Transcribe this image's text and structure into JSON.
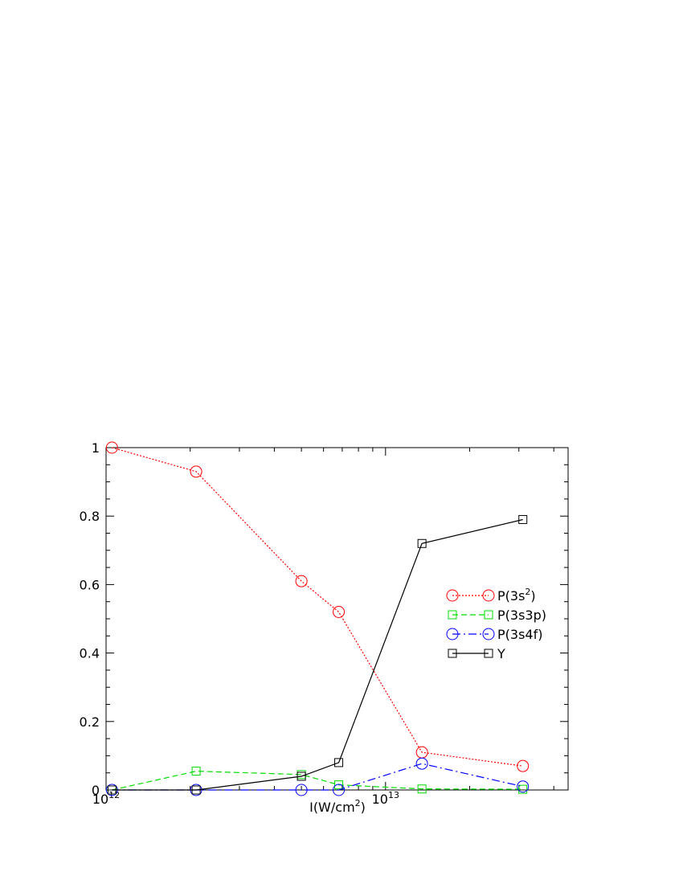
{
  "chart_data": {
    "type": "line",
    "xlabel": "I(W/cm",
    "xlabel_sup": "2",
    "xlabel_suffix": ")",
    "x_scale": "log",
    "xlim": [
      1000000000000.0,
      45000000000000.0
    ],
    "ylim": [
      0,
      1
    ],
    "y_ticks": [
      {
        "value": 0,
        "label": "0"
      },
      {
        "value": 0.2,
        "label": "0.2"
      },
      {
        "value": 0.4,
        "label": "0.4"
      },
      {
        "value": 0.6,
        "label": "0.6"
      },
      {
        "value": 0.8,
        "label": "0.8"
      },
      {
        "value": 1,
        "label": "1"
      }
    ],
    "x_ticks": [
      {
        "value": 1000000000000.0,
        "base": "10",
        "exp": "12"
      },
      {
        "value": 10000000000000.0,
        "base": "10",
        "exp": "13"
      }
    ],
    "grid": false,
    "legend_position": "right",
    "x": [
      1050000000000.0,
      2100000000000.0,
      5000000000000.0,
      6800000000000.0,
      13500000000000.0,
      31000000000000.0
    ],
    "series": [
      {
        "name": "P(3s",
        "name_sup": "2",
        "name_suffix": ")",
        "marker": "circle",
        "dash": "dotted",
        "color": "#ff0000",
        "values": [
          1.0,
          0.93,
          0.61,
          0.52,
          0.11,
          0.07
        ]
      },
      {
        "name": "P(3s3p)",
        "name_sup": "",
        "name_suffix": "",
        "marker": "square",
        "dash": "dashed",
        "color": "#00dd00",
        "values": [
          0.0,
          0.055,
          0.045,
          0.015,
          0.003,
          0.002
        ]
      },
      {
        "name": "P(3s4f)",
        "name_sup": "",
        "name_suffix": "",
        "marker": "circle",
        "dash": "dashdot",
        "color": "#0000ff",
        "values": [
          0.0,
          0.0,
          0.0,
          0.0,
          0.077,
          0.01
        ]
      },
      {
        "name": "Y",
        "name_sup": "",
        "name_suffix": "",
        "marker": "square",
        "dash": "solid",
        "color": "#000000",
        "values": [
          0.0,
          0.0,
          0.04,
          0.08,
          0.72,
          0.79
        ]
      }
    ]
  }
}
